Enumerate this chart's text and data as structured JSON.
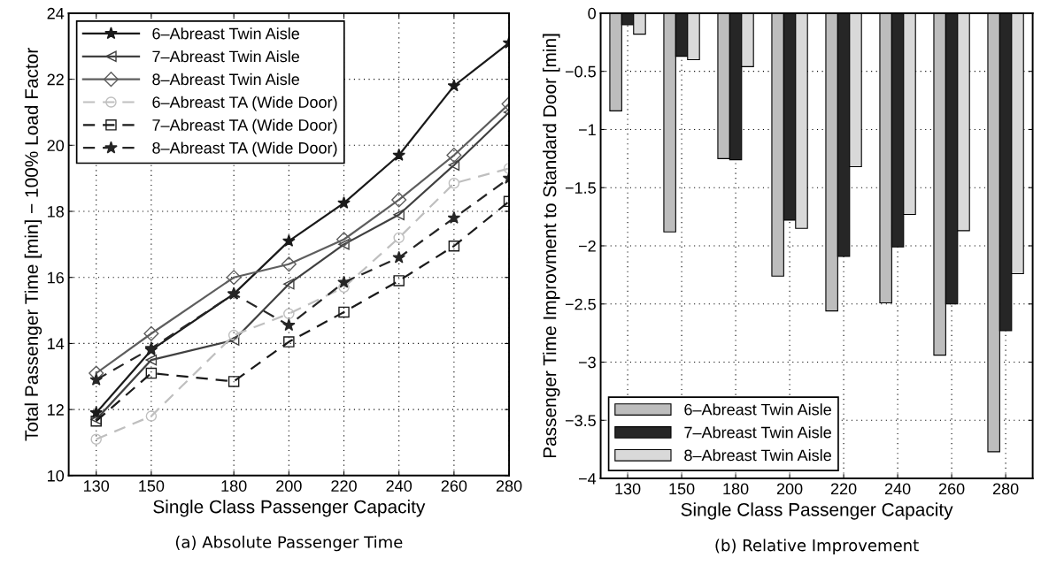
{
  "chart_data": [
    {
      "type": "line",
      "xlabel": "Single Class Passenger Capacity",
      "ylabel": "Total Passenger Time [min] − 100% Load Factor",
      "x": [
        130,
        150,
        180,
        200,
        220,
        240,
        260,
        280
      ],
      "xlim": [
        120,
        280
      ],
      "xticks": [
        130,
        150,
        180,
        200,
        220,
        240,
        260,
        280
      ],
      "ylim": [
        10,
        24
      ],
      "yticks": [
        10,
        12,
        14,
        16,
        18,
        20,
        22,
        24
      ],
      "grid": true,
      "legend": "top left",
      "annotations": [
        "(a) Absolute Passenger Time"
      ],
      "series": [
        {
          "name": "6–Abreast Twin Aisle",
          "color": "#1a1a1a",
          "marker": "star",
          "line_style": "solid",
          "values": [
            11.9,
            13.8,
            15.5,
            17.1,
            18.25,
            19.7,
            21.8,
            23.1
          ]
        },
        {
          "name": "7–Abreast Twin Aisle",
          "color": "#404040",
          "marker": "triangle",
          "line_style": "solid",
          "values": [
            11.7,
            13.5,
            14.1,
            15.8,
            17.0,
            17.9,
            19.4,
            21.0
          ]
        },
        {
          "name": "8–Abreast Twin Aisle",
          "color": "#5e5e5e",
          "marker": "diamond",
          "line_style": "solid",
          "values": [
            13.1,
            14.3,
            16.0,
            16.4,
            17.15,
            18.35,
            19.7,
            21.25
          ]
        },
        {
          "name": "6–Abreast TA (Wide Door)",
          "color": "#bfbfbf",
          "marker": "circle",
          "line_style": "dashed",
          "values": [
            11.1,
            11.8,
            14.25,
            14.9,
            15.7,
            17.2,
            18.85,
            19.3
          ]
        },
        {
          "name": "7–Abreast TA (Wide Door)",
          "color": "#1a1a1a",
          "marker": "square",
          "line_style": "dashed",
          "values": [
            11.65,
            13.1,
            12.85,
            14.05,
            14.95,
            15.9,
            16.95,
            18.3
          ]
        },
        {
          "name": "8–Abreast TA (Wide Door)",
          "color": "#262626",
          "marker": "star",
          "line_style": "dashed",
          "values": [
            12.9,
            13.85,
            15.5,
            14.55,
            15.85,
            16.6,
            17.8,
            19.0
          ]
        }
      ]
    },
    {
      "type": "bar",
      "xlabel": "Single Class Passenger Capacity",
      "ylabel": "Passenger Time Improvment to Standard Door [min]",
      "categories": [
        "130",
        "150",
        "180",
        "200",
        "220",
        "240",
        "260",
        "280"
      ],
      "ylim": [
        -4,
        0
      ],
      "yticks": [
        {
          "value": -4,
          "label": "−4"
        },
        {
          "value": -3.5,
          "label": "−3.5"
        },
        {
          "value": -3,
          "label": "−3"
        },
        {
          "value": -2.5,
          "label": "−2.5"
        },
        {
          "value": -2,
          "label": "−2"
        },
        {
          "value": -1.5,
          "label": "−1.5"
        },
        {
          "value": -1,
          "label": "−1"
        },
        {
          "value": -0.5,
          "label": "−0.5"
        },
        0
      ],
      "grid": true,
      "legend": "bottom left",
      "annotations": [
        "(b) Relative Improvement"
      ],
      "series": [
        {
          "name": "6–Abreast Twin Aisle",
          "color": "#bdbdbd",
          "values": [
            -0.84,
            -1.88,
            -1.25,
            -2.26,
            -2.56,
            -2.49,
            -2.94,
            -3.77
          ]
        },
        {
          "name": "7–Abreast Twin Aisle",
          "color": "#262626",
          "values": [
            -0.1,
            -0.37,
            -1.26,
            -1.78,
            -2.09,
            -2.01,
            -2.5,
            -2.73
          ]
        },
        {
          "name": "8–Abreast Twin Aisle",
          "color": "#d9d9d9",
          "values": [
            -0.18,
            -0.4,
            -0.46,
            -1.85,
            -1.32,
            -1.73,
            -1.87,
            -2.24
          ]
        }
      ]
    }
  ]
}
